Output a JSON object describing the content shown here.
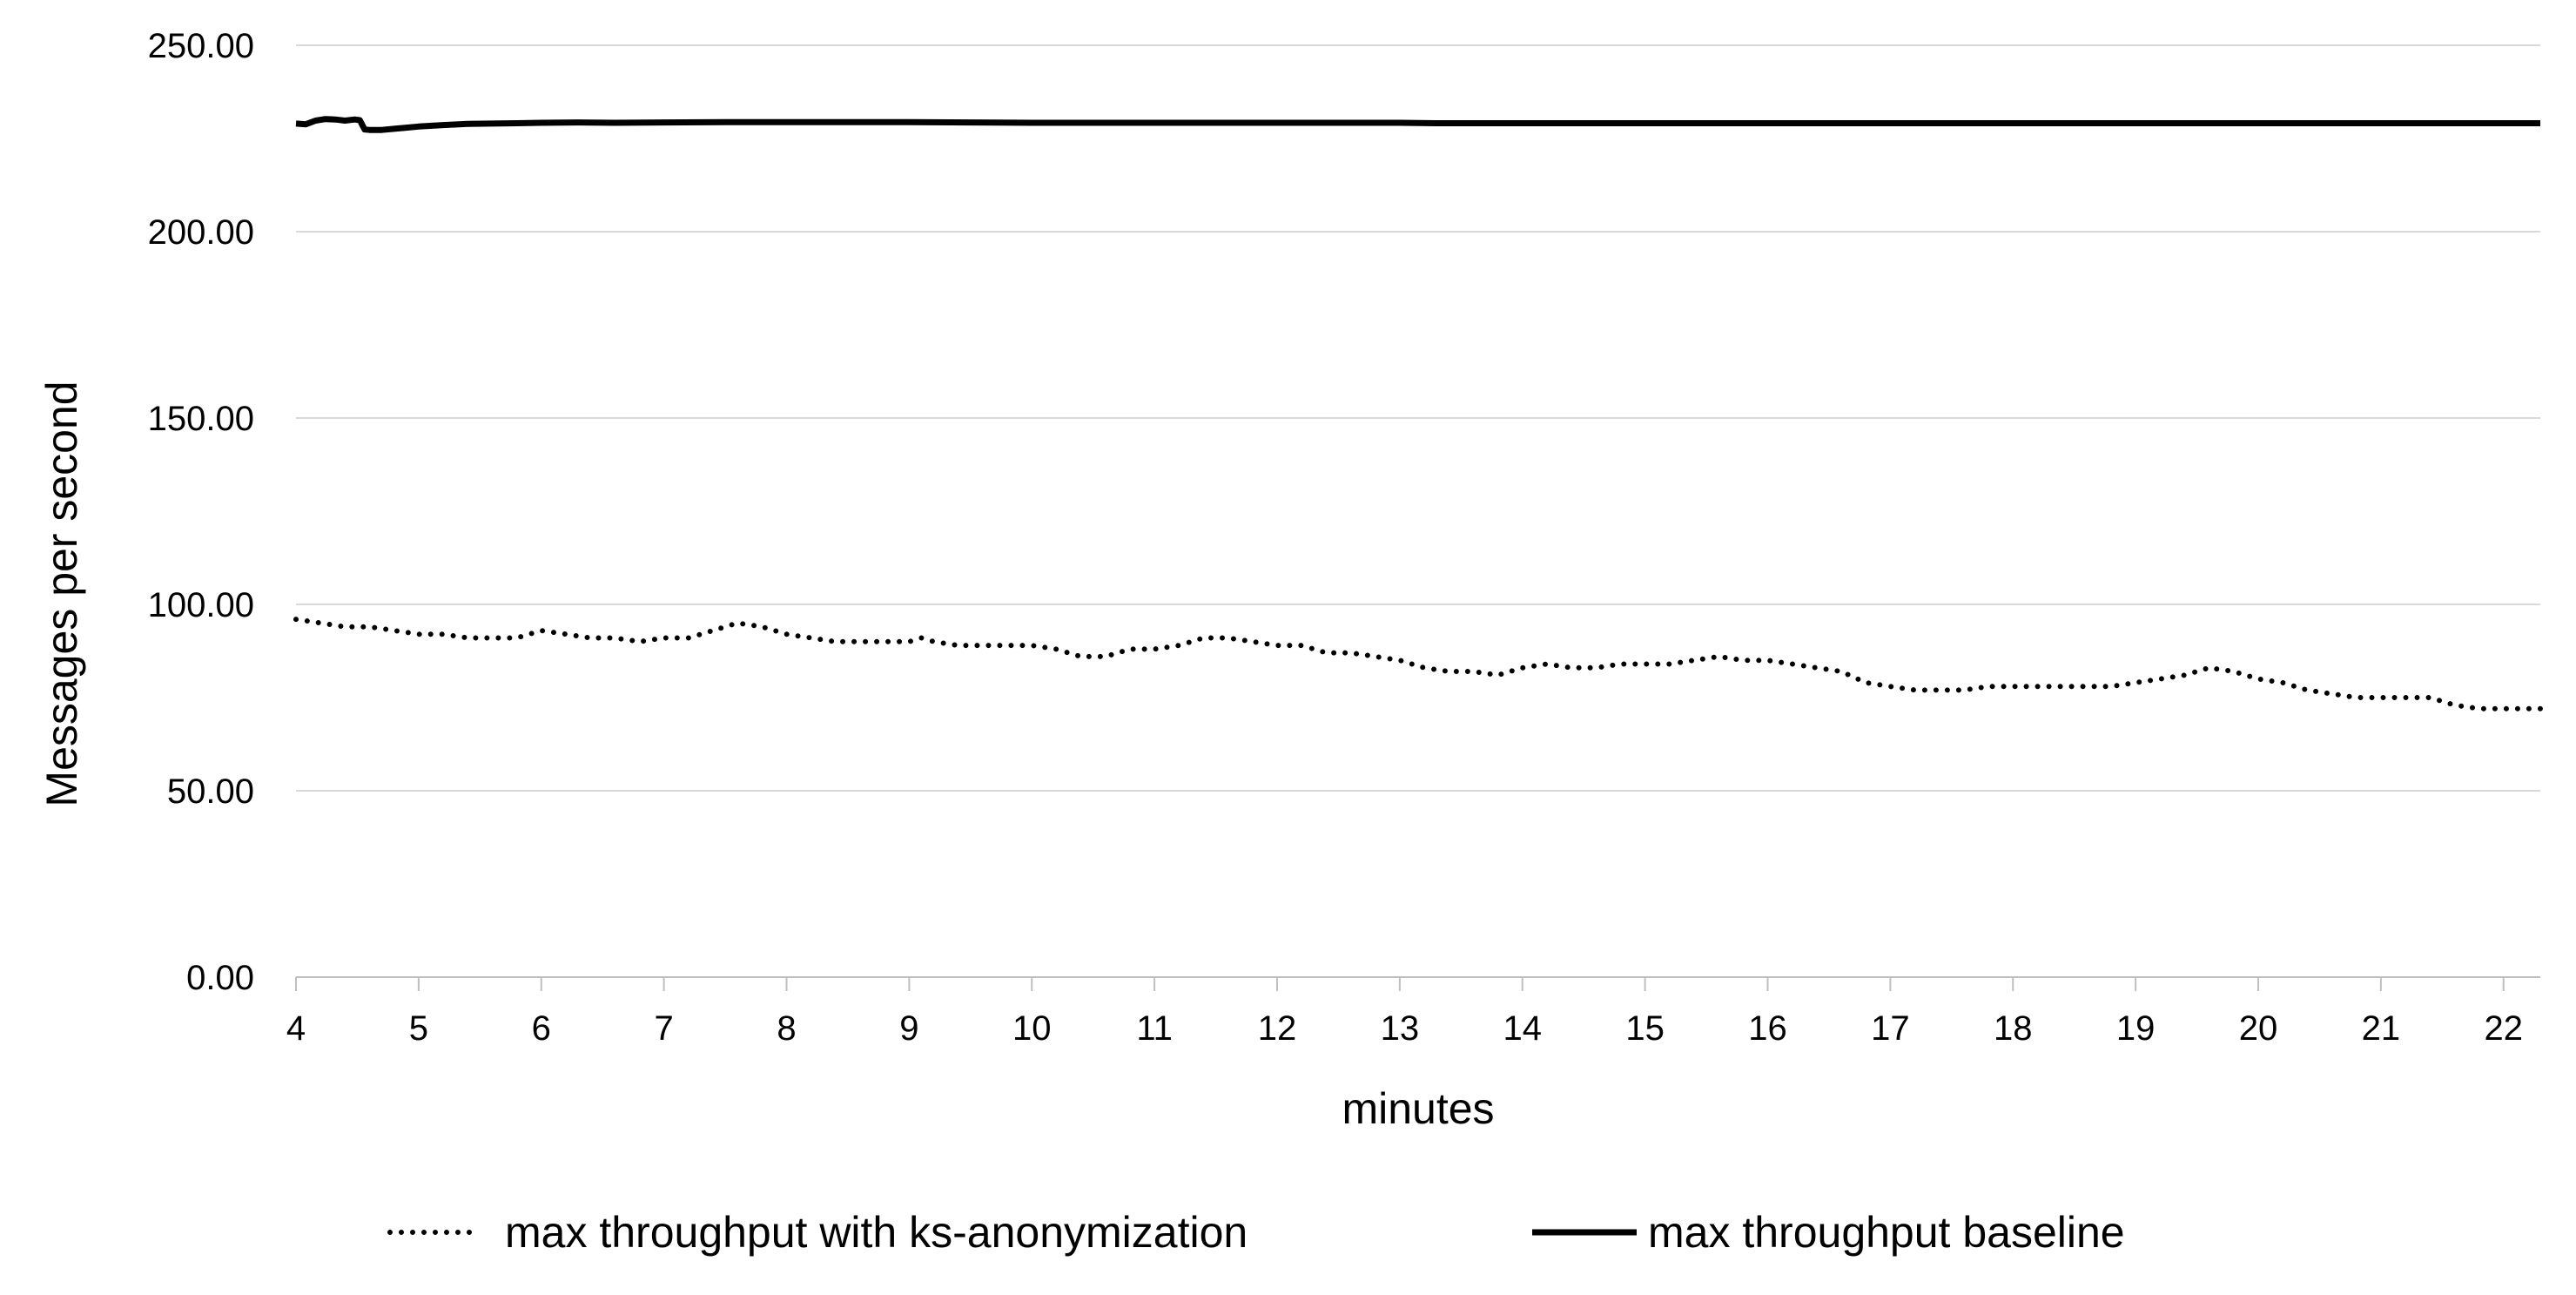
{
  "chart_data": {
    "type": "line",
    "title": "",
    "xlabel": "minutes",
    "ylabel": "Messages per second",
    "xlim": [
      4,
      22.3
    ],
    "ylim": [
      0,
      250
    ],
    "x_ticks": [
      "4",
      "5",
      "6",
      "7",
      "8",
      "9",
      "10",
      "11",
      "12",
      "13",
      "14",
      "15",
      "16",
      "17",
      "18",
      "19",
      "20",
      "21",
      "22"
    ],
    "x_tick_values": [
      4,
      5,
      6,
      7,
      8,
      9,
      10,
      11,
      12,
      13,
      14,
      15,
      16,
      17,
      18,
      19,
      20,
      21,
      22
    ],
    "y_ticks": [
      "0.00",
      "50.00",
      "100.00",
      "150.00",
      "200.00",
      "250.00"
    ],
    "y_tick_values": [
      0,
      50,
      100,
      150,
      200,
      250
    ],
    "grid": "horizontal",
    "legend_position": "bottom",
    "series": [
      {
        "name": "max throughput with ks-anonymization",
        "style": "dotted",
        "color": "#000000",
        "x": [
          4.0,
          4.2,
          4.4,
          4.6,
          4.8,
          5.0,
          5.2,
          5.4,
          5.6,
          5.8,
          6.0,
          6.2,
          6.4,
          6.6,
          6.8,
          7.0,
          7.2,
          7.4,
          7.6,
          7.8,
          8.0,
          8.2,
          8.4,
          8.6,
          8.8,
          9.0,
          9.1,
          9.2,
          9.4,
          9.6,
          9.8,
          10.0,
          10.2,
          10.4,
          10.6,
          10.8,
          11.0,
          11.2,
          11.4,
          11.6,
          11.8,
          12.0,
          12.2,
          12.4,
          12.6,
          12.8,
          13.0,
          13.2,
          13.4,
          13.6,
          13.8,
          14.0,
          14.2,
          14.4,
          14.6,
          14.8,
          15.0,
          15.2,
          15.4,
          15.6,
          15.8,
          16.0,
          16.2,
          16.4,
          16.6,
          16.8,
          17.0,
          17.2,
          17.4,
          17.6,
          17.8,
          18.0,
          18.2,
          18.4,
          18.6,
          18.8,
          19.0,
          19.2,
          19.4,
          19.6,
          19.8,
          20.0,
          20.2,
          20.4,
          20.6,
          20.8,
          21.0,
          21.2,
          21.4,
          21.6,
          21.8,
          22.0,
          22.2,
          22.3
        ],
        "y": [
          96,
          95,
          94,
          94,
          93,
          92,
          92,
          91,
          91,
          91,
          93,
          92,
          91,
          91,
          90,
          91,
          91,
          93,
          95,
          94,
          92,
          91,
          90,
          90,
          90,
          90,
          91,
          90,
          89,
          89,
          89,
          89,
          88,
          86,
          86,
          88,
          88,
          89,
          91,
          91,
          90,
          89,
          89,
          87,
          87,
          86,
          85,
          83,
          82,
          82,
          81,
          83,
          84,
          83,
          83,
          84,
          84,
          84,
          85,
          86,
          85,
          85,
          84,
          83,
          82,
          79,
          78,
          77,
          77,
          77,
          78,
          78,
          78,
          78,
          78,
          78,
          79,
          80,
          81,
          83,
          82,
          80,
          79,
          77,
          76,
          75,
          75,
          75,
          75,
          73,
          72,
          72,
          72,
          72
        ]
      },
      {
        "name": "max throughput baseline",
        "style": "solid",
        "color": "#000000",
        "x": [
          4.0,
          4.08,
          4.16,
          4.24,
          4.32,
          4.4,
          4.48,
          4.52,
          4.56,
          4.6,
          4.7,
          4.8,
          4.9,
          5.0,
          5.2,
          5.4,
          5.6,
          5.8,
          6.0,
          6.3,
          6.6,
          7.0,
          7.5,
          8.0,
          8.5,
          9.0,
          9.5,
          10.0,
          11.0,
          12.0,
          13.0,
          13.3,
          14.0,
          15.0,
          16.0,
          17.0,
          18.0,
          19.0,
          20.0,
          21.0,
          22.0,
          22.3
        ],
        "y": [
          229,
          228.8,
          229.8,
          230.2,
          230.1,
          229.8,
          230.1,
          229.9,
          227.4,
          227.3,
          227.3,
          227.6,
          227.9,
          228.2,
          228.6,
          228.9,
          229.0,
          229.1,
          229.2,
          229.3,
          229.2,
          229.3,
          229.4,
          229.4,
          229.4,
          229.4,
          229.3,
          229.2,
          229.2,
          229.2,
          229.2,
          229.1,
          229.1,
          229.1,
          229.1,
          229.1,
          229.1,
          229.1,
          229.1,
          229.1,
          229.1,
          229.1
        ]
      }
    ]
  }
}
